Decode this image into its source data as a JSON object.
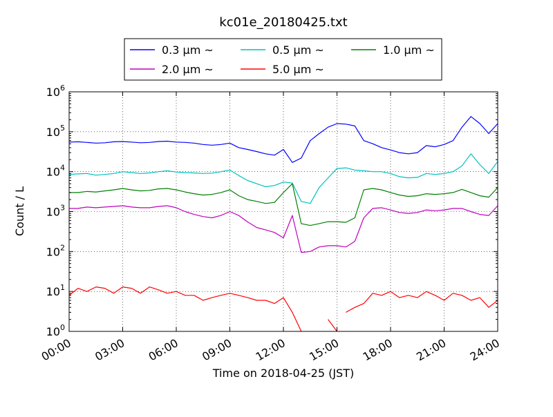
{
  "chart_data": {
    "type": "line",
    "title": "kc01e_20180425.txt",
    "xlabel": "Time on 2018-04-25 (JST)",
    "ylabel": "Count / L",
    "yscale": "log",
    "ylim": [
      1,
      1000000
    ],
    "xlim": [
      "00:00",
      "24:00"
    ],
    "x_ticks": [
      "00:00",
      "03:00",
      "06:00",
      "09:00",
      "12:00",
      "15:00",
      "18:00",
      "21:00",
      "24:00"
    ],
    "y_ticks": [
      {
        "base": "10",
        "exp": "0",
        "value": 1
      },
      {
        "base": "10",
        "exp": "1",
        "value": 10
      },
      {
        "base": "10",
        "exp": "2",
        "value": 100
      },
      {
        "base": "10",
        "exp": "3",
        "value": 1000
      },
      {
        "base": "10",
        "exp": "4",
        "value": 10000
      },
      {
        "base": "10",
        "exp": "5",
        "value": 100000
      },
      {
        "base": "10",
        "exp": "6",
        "value": 1000000
      }
    ],
    "grid": true,
    "legend_position": "top-center",
    "x_hours": [
      0,
      0.5,
      1,
      1.5,
      2,
      2.5,
      3,
      3.5,
      4,
      4.5,
      5,
      5.5,
      6,
      6.5,
      7,
      7.5,
      8,
      8.5,
      9,
      9.5,
      10,
      10.5,
      11,
      11.5,
      12,
      12.5,
      13,
      13.5,
      14,
      14.5,
      15,
      15.5,
      16,
      16.5,
      17,
      17.5,
      18,
      18.5,
      19,
      19.5,
      20,
      20.5,
      21,
      21.5,
      22,
      22.5,
      23,
      23.5,
      24
    ],
    "series": [
      {
        "name": "0.3 μm ~",
        "color": "#0000ff",
        "values": [
          55000,
          56000,
          54000,
          52000,
          53000,
          56000,
          57000,
          55000,
          53000,
          54000,
          57000,
          58000,
          55000,
          54000,
          52000,
          48000,
          46000,
          48000,
          52000,
          40000,
          36000,
          32000,
          28000,
          26000,
          36000,
          17000,
          22000,
          60000,
          90000,
          130000,
          160000,
          155000,
          140000,
          60000,
          50000,
          40000,
          35000,
          30000,
          28000,
          30000,
          45000,
          42000,
          48000,
          60000,
          130000,
          240000,
          160000,
          90000,
          160000
        ]
      },
      {
        "name": "0.5 μm ~",
        "color": "#00bfbf",
        "values": [
          8500,
          8800,
          9000,
          8200,
          8500,
          9000,
          10000,
          9500,
          9000,
          9300,
          10000,
          10500,
          9800,
          9500,
          9300,
          9000,
          9200,
          10000,
          11000,
          8000,
          6000,
          5000,
          4200,
          4500,
          5500,
          5200,
          1800,
          1600,
          4000,
          7000,
          12000,
          12500,
          11000,
          10500,
          10000,
          10000,
          9000,
          7500,
          7000,
          7200,
          9000,
          8500,
          9000,
          10000,
          14000,
          28000,
          15000,
          9000,
          18000
        ]
      },
      {
        "name": "1.0 μm ~",
        "color": "#008000",
        "values": [
          3000,
          3000,
          3200,
          3100,
          3300,
          3500,
          3800,
          3500,
          3300,
          3400,
          3700,
          3800,
          3500,
          3100,
          2800,
          2600,
          2700,
          3000,
          3500,
          2500,
          2000,
          1800,
          1600,
          1700,
          3000,
          5000,
          500,
          450,
          500,
          560,
          560,
          540,
          700,
          3500,
          3800,
          3500,
          3000,
          2600,
          2400,
          2500,
          2800,
          2700,
          2800,
          3000,
          3600,
          3000,
          2500,
          2300,
          4000
        ]
      },
      {
        "name": "2.0 μm ~",
        "color": "#bf00bf",
        "values": [
          1200,
          1200,
          1300,
          1250,
          1300,
          1350,
          1400,
          1300,
          1250,
          1250,
          1350,
          1400,
          1250,
          1000,
          850,
          750,
          700,
          800,
          1000,
          800,
          550,
          400,
          350,
          300,
          220,
          800,
          95,
          100,
          130,
          140,
          140,
          130,
          180,
          700,
          1200,
          1250,
          1100,
          950,
          900,
          950,
          1100,
          1050,
          1100,
          1200,
          1200,
          1000,
          850,
          800,
          1400
        ]
      },
      {
        "name": "5.0 μm ~",
        "color": "#ff0000",
        "values": [
          8,
          12,
          10,
          13,
          12,
          9,
          13,
          12,
          9,
          13,
          11,
          9,
          10,
          8,
          8,
          6,
          7,
          8,
          9,
          8,
          7,
          6,
          6,
          5,
          7,
          3,
          0,
          0,
          0,
          2,
          0,
          3,
          4,
          5,
          9,
          8,
          10,
          7,
          8,
          7,
          10,
          8,
          6,
          9,
          8,
          6,
          7,
          4,
          6
        ]
      }
    ]
  }
}
